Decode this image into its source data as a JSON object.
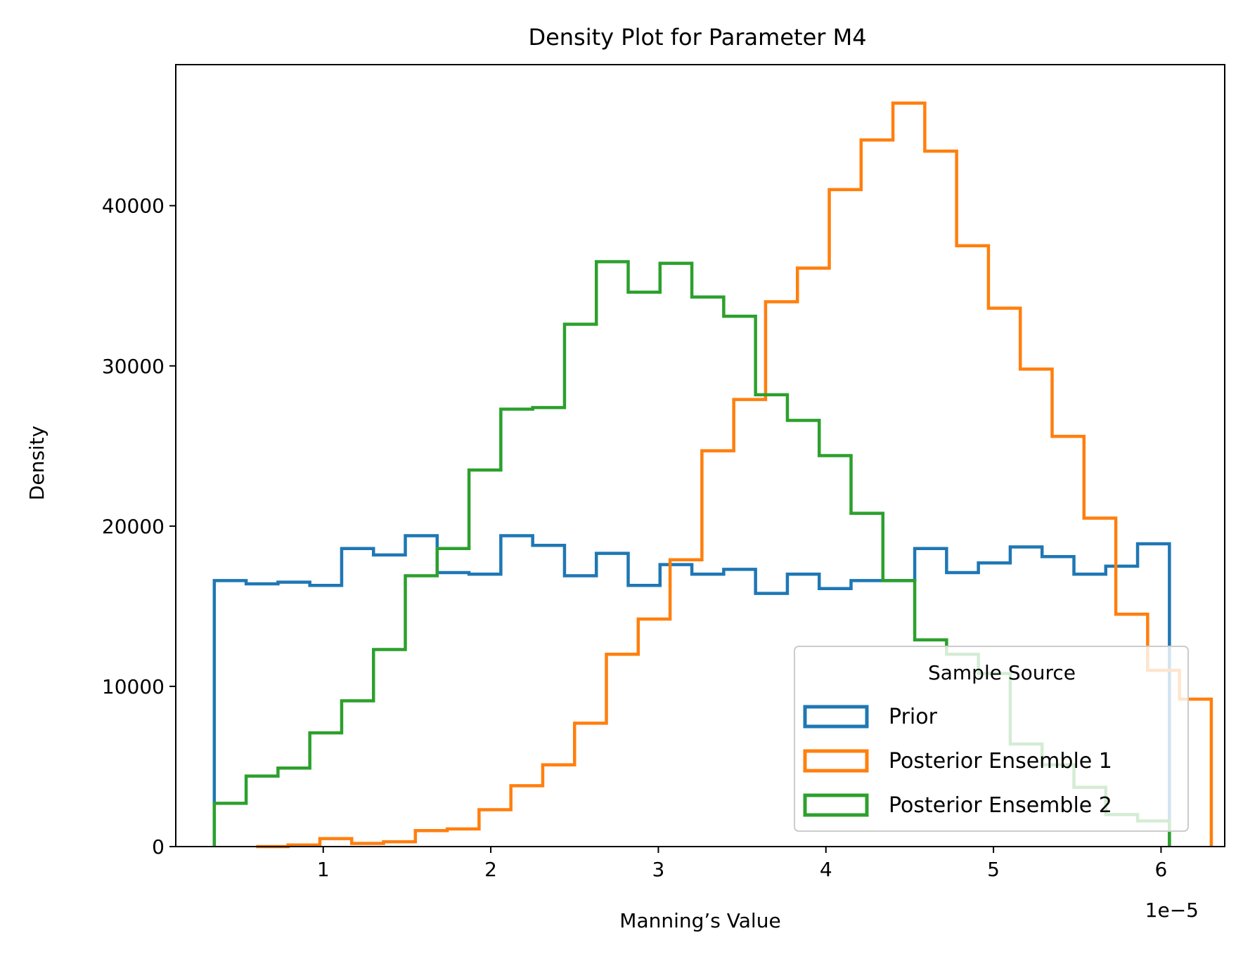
{
  "chart_data": {
    "type": "histogram",
    "title": "Density Plot for Parameter M4",
    "xlabel": "Manning’s Value",
    "ylabel": "Density",
    "x_offset_text": "1e−5",
    "x_scale": 1e-05,
    "xlim": [
      0.12,
      6.38
    ],
    "ylim": [
      0,
      48800
    ],
    "x_ticks": [
      1,
      2,
      3,
      4,
      5,
      6
    ],
    "y_ticks": [
      0,
      10000,
      20000,
      30000,
      40000
    ],
    "grid": false,
    "legend": {
      "title": "Sample Source",
      "placement": "lower-right"
    },
    "series": [
      {
        "name": "Prior",
        "color": "#1f77b4",
        "x_start": 0.35,
        "bin_width": 0.19,
        "values": [
          16600,
          16400,
          16500,
          16300,
          18600,
          18200,
          19400,
          17100,
          17000,
          19400,
          18800,
          16900,
          18300,
          16300,
          17600,
          17000,
          17300,
          15800,
          17000,
          16100,
          16600,
          16600,
          18600,
          17100,
          17700,
          18700,
          18100,
          17000,
          17500,
          18900
        ]
      },
      {
        "name": "Posterior Ensemble 1",
        "color": "#ff7f0e",
        "x_start": 0.6,
        "bin_width": 0.19,
        "values": [
          0,
          100,
          500,
          200,
          300,
          1000,
          1100,
          2300,
          3800,
          5100,
          7700,
          12000,
          14200,
          17900,
          24700,
          27900,
          34000,
          36100,
          41000,
          44100,
          46400,
          43400,
          37500,
          33600,
          29800,
          25600,
          20500,
          14500,
          11000,
          9200
        ]
      },
      {
        "name": "Posterior Ensemble 2",
        "color": "#2ca02c",
        "x_start": 0.35,
        "bin_width": 0.19,
        "values": [
          2700,
          4400,
          4900,
          7100,
          9100,
          12300,
          16900,
          18600,
          23500,
          27300,
          27400,
          32600,
          36500,
          34600,
          36400,
          34300,
          33100,
          28200,
          26600,
          24400,
          20800,
          16600,
          12900,
          12000,
          10800,
          6400,
          5100,
          3700,
          2000,
          1600
        ]
      }
    ]
  }
}
